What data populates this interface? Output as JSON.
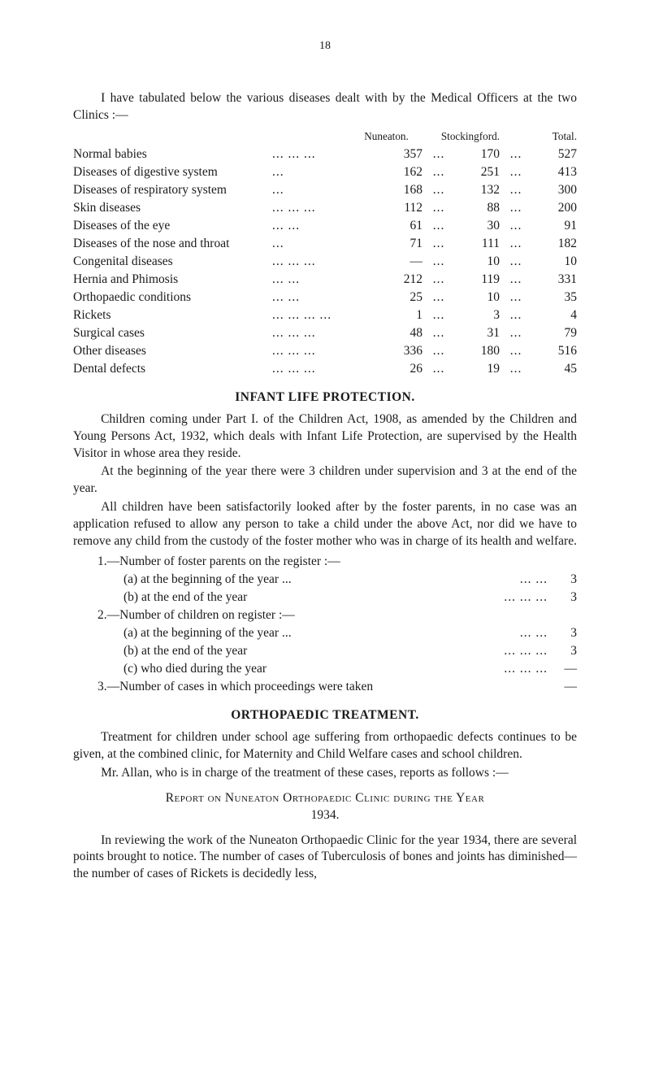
{
  "page_number": "18",
  "intro_para": "I have tabulated below the various diseases dealt with by the Medical Officers at the two Clinics :—",
  "table": {
    "columns": {
      "c1": "Nuneaton.",
      "c2": "Stockingford.",
      "c3": "Total."
    },
    "rows": [
      {
        "label": "Normal babies",
        "pre": "...     ...",
        "nun": "357",
        "stock": "170",
        "total": "527"
      },
      {
        "label": "Diseases of digestive system",
        "pre": "",
        "nun": "162",
        "stock": "251",
        "total": "413"
      },
      {
        "label": "Diseases of respiratory system",
        "pre": "",
        "nun": "168",
        "stock": "132",
        "total": "300"
      },
      {
        "label": "Skin diseases",
        "pre": "...     ...",
        "nun": "112",
        "stock": "88",
        "total": "200"
      },
      {
        "label": "Diseases of the eye",
        "pre": "...",
        "nun": "61",
        "stock": "30",
        "total": "91"
      },
      {
        "label": "Diseases of the nose and throat",
        "pre": "",
        "nun": "71",
        "stock": "111",
        "total": "182"
      },
      {
        "label": "Congenital diseases",
        "pre": "...     ...",
        "nun": "—",
        "stock": "10",
        "total": "10"
      },
      {
        "label": "Hernia and Phimosis",
        "pre": "...",
        "nun": "212",
        "stock": "119",
        "total": "331"
      },
      {
        "label": "Orthopaedic conditions",
        "pre": "...",
        "nun": "25",
        "stock": "10",
        "total": "35"
      },
      {
        "label": "Rickets",
        "pre": "...     ...     ...",
        "nun": "1",
        "stock": "3",
        "total": "4"
      },
      {
        "label": "Surgical cases",
        "pre": "...     ...",
        "nun": "48",
        "stock": "31",
        "total": "79"
      },
      {
        "label": "Other diseases",
        "pre": "...     ...",
        "nun": "336",
        "stock": "180",
        "total": "516"
      },
      {
        "label": "Dental defects",
        "pre": "...     ...",
        "nun": "26",
        "stock": "19",
        "total": "45"
      }
    ]
  },
  "heading1": "INFANT LIFE PROTECTION.",
  "infant_p1": "Children coming under Part I. of the Children Act, 1908, as amended by the Children and Young Persons Act, 1932, which deals with Infant Life Protection, are supervised by the Health Visitor in whose area they reside.",
  "infant_p2": "At the beginning of the year there were 3 children under supervision and 3 at the end of the year.",
  "infant_p3": "All children have been satisfactorily looked after by the foster parents, in no case was an application refused to allow any person to take a child under the above Act, nor did we have to remove any child from the custody of the foster mother who was in charge of its health and welfare.",
  "list": {
    "l1": "1.—Number of foster parents on the register :—",
    "l1a": "(a) at the beginning of the year ...",
    "l1a_v": "3",
    "l1b": "(b) at the end of the year",
    "l1b_v": "3",
    "l2": "2.—Number of children on register :—",
    "l2a": "(a) at the beginning of the year ...",
    "l2a_v": "3",
    "l2b": "(b) at the end of the year",
    "l2b_v": "3",
    "l2c": "(c) who died during the year",
    "l2c_v": "—",
    "l3": "3.—Number of cases in which proceedings were taken",
    "l3_v": "—"
  },
  "heading2": "ORTHOPAEDIC TREATMENT.",
  "ortho_p1": "Treatment for children under school age suffering from orthopaedic defects continues to be given, at the combined clinic, for Maternity and Child Welfare cases and school children.",
  "ortho_p2": "Mr. Allan, who is in charge of the treatment of these cases, reports as follows :—",
  "report_head1": "Report on Nuneaton Orthopaedic Clinic during the Year",
  "report_head2": "1934.",
  "ortho_p3": "In reviewing the work of the Nuneaton Orthopaedic Clinic for the year 1934, there are several points brought to notice. The number of cases of Tuberculosis of bones and joints has diminished—the number of cases of Rickets is decidedly less,"
}
